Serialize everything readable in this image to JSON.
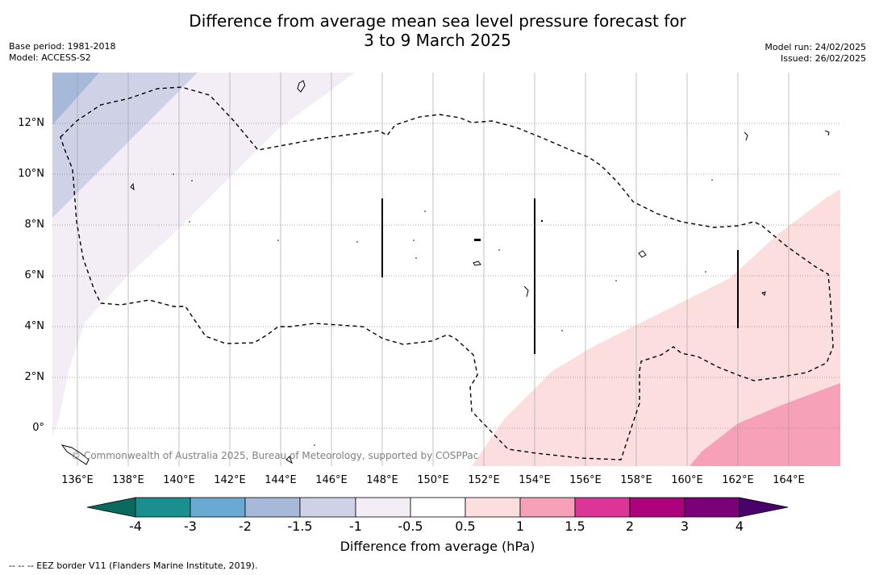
{
  "title_line1": "Difference from average mean sea level pressure forecast for",
  "title_line2": "3 to 9 March 2025",
  "base_period": "Base period: 1981-2018",
  "model": "Model: ACCESS-S2",
  "model_run": "Model run: 24/02/2025",
  "issued": "Issued: 26/02/2025",
  "copyright": "© Commonwealth of Australia 2025, Bureau of Meteorology, supported by COSPPac",
  "lat_labels": [
    "12°N",
    "10°N",
    "8°N",
    "6°N",
    "4°N",
    "2°N",
    "0°"
  ],
  "lon_labels": [
    "136°E",
    "138°E",
    "140°E",
    "142°E",
    "144°E",
    "146°E",
    "148°E",
    "150°E",
    "152°E",
    "154°E",
    "156°E",
    "158°E",
    "160°E",
    "162°E",
    "164°E"
  ],
  "colorbar": {
    "title": "Difference from average (hPa)",
    "tick_labels": [
      "-4",
      "-3",
      "-2",
      "-1.5",
      "-1",
      "-0.5",
      "0.5",
      "1",
      "1.5",
      "2",
      "3",
      "4"
    ],
    "colors": [
      "#1a8f8f",
      "#6aa9d4",
      "#a7b9d9",
      "#cfd1e6",
      "#f3eef5",
      "#ffffff",
      "#fcdede",
      "#f7a1b8",
      "#dd3497",
      "#ae017e",
      "#7a0177"
    ],
    "under_color": "#0b6a5e",
    "over_color": "#49006a"
  },
  "footnote": "--  --  -- EEZ border V11 (Flanders Marine Institute, 2019)."
}
